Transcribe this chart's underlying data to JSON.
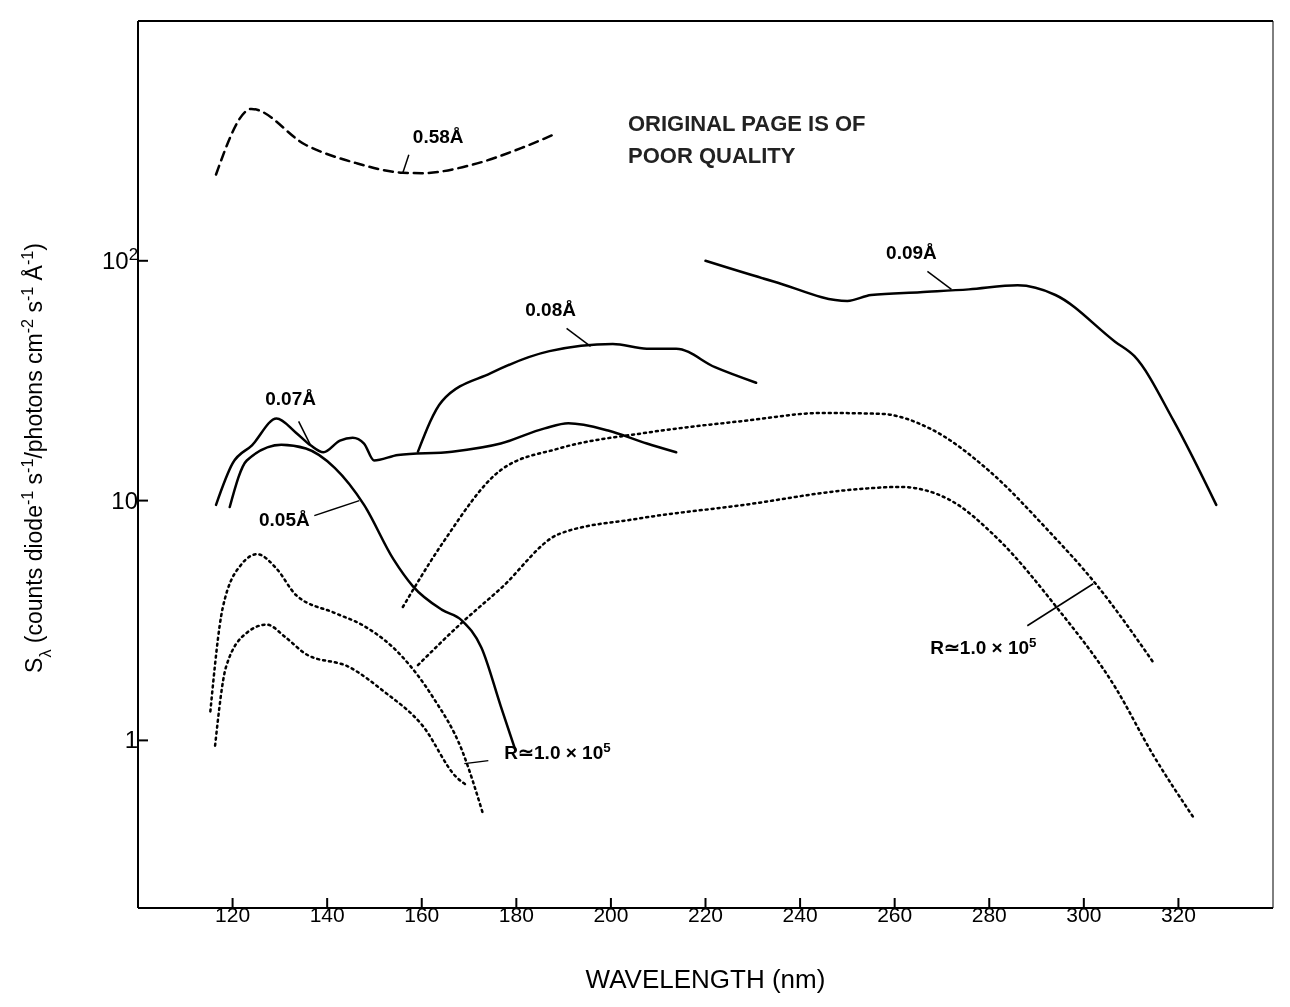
{
  "chart_data": {
    "type": "line",
    "xlabel": "WAVELENGTH (nm)",
    "ylabel": "S$_{λ}$ (counts diode$^{-1}$ s$^{-1}$/photons cm$^{-2}$ s$^{-1}$ Å$^{-1}$)",
    "xlim": [
      100,
      340
    ],
    "xticks": [
      120,
      140,
      160,
      180,
      200,
      220,
      240,
      260,
      280,
      300,
      320
    ],
    "ylim": [
      0.2,
      1000
    ],
    "yticks": [
      1,
      10,
      {
        "value": 100,
        "label": "10$^{2}$"
      }
    ],
    "log": "y",
    "marker": "none",
    "series": [
      {
        "color": "#000000",
        "line_style": "dashed",
        "x": [
          116.5,
          124,
          135.5,
          146,
          156,
          160,
          170.5,
          181,
          188.5
        ],
        "values": [
          229,
          430,
          304,
          256,
          233,
          232,
          251,
          295,
          340
        ]
      },
      {
        "color": "#000000",
        "line_style": "solid",
        "x": [
          220,
          234.4,
          250,
          255,
          265.4,
          275.7,
          286,
          294,
          306.6,
          310.7,
          319,
          328
        ],
        "values": [
          100,
          82,
          68,
          72,
          74,
          76,
          79,
          72,
          46,
          40,
          21.5,
          9.6
        ]
      },
      {
        "color": "#000000",
        "line_style": "solid",
        "x": [
          159.2,
          164.3,
          174.6,
          187,
          200.4,
          207.6,
          213.8,
          222,
          230.7
        ],
        "values": [
          16,
          26,
          34,
          42,
          45,
          43,
          43,
          36,
          31
        ]
      },
      {
        "color": "#000000",
        "line_style": "solid",
        "x": [
          116.5,
          120,
          124.1,
          129.3,
          133.4,
          136.5,
          139.2,
          142.7,
          145.4,
          147.8,
          149.9,
          155,
          166.4,
          176.7,
          186,
          191,
          199.4,
          207.6,
          213.8
        ],
        "values": [
          9.6,
          14.3,
          17,
          22,
          19.2,
          17,
          15.9,
          17.8,
          18.3,
          17.3,
          14.7,
          15.5,
          16,
          17.3,
          20,
          21,
          19.6,
          17.3,
          15.9
        ]
      },
      {
        "color": "#000000",
        "line_style": "solid",
        "x": [
          119.4,
          123,
          130.3,
          135.5,
          141.6,
          147.8,
          154,
          158.1,
          164.3,
          168.5,
          172.6,
          176.7,
          179.8
        ],
        "values": [
          9.4,
          14.7,
          17.1,
          16.5,
          13.7,
          9.6,
          5.7,
          4.4,
          3.5,
          3.16,
          2.44,
          1.39,
          0.91
        ]
      },
      {
        "color": "#000000",
        "line_style": "dotted",
        "x": [
          115.3,
          117.9,
          122,
          125.2,
          129.3,
          133.4,
          141.6,
          147.8,
          156,
          162.3,
          168.5,
          173
        ],
        "values": [
          1.32,
          3.56,
          5.46,
          5.98,
          5.2,
          4.04,
          3.4,
          3.0,
          2.22,
          1.52,
          0.91,
          0.49
        ]
      },
      {
        "color": "#000000",
        "line_style": "dotted",
        "x": [
          116.3,
          118.6,
          123.1,
          127.2,
          131.3,
          135.5,
          144.7,
          152,
          160.2,
          167.4,
          169.5
        ],
        "values": [
          0.95,
          2.02,
          2.82,
          3.04,
          2.68,
          2.29,
          2.02,
          1.6,
          1.15,
          0.7,
          0.65
        ]
      },
      {
        "color": "#000000",
        "line_style": "dotted",
        "x": [
          156,
          164.3,
          176.7,
          189,
          207.6,
          228.2,
          244.7,
          257.1,
          267.4,
          279.8,
          292.2,
          302.5,
          314.8
        ],
        "values": [
          3.6,
          6.6,
          13.4,
          16.5,
          19.2,
          21.5,
          23.2,
          23,
          20,
          13.4,
          7.6,
          4.5,
          2.1
        ]
      },
      {
        "color": "#000000",
        "line_style": "dotted",
        "x": [
          159.2,
          168.5,
          176.7,
          189,
          205.6,
          228.2,
          250.9,
          261.2,
          271.5,
          281.9,
          294.2,
          306.6,
          314.8,
          323.1
        ],
        "values": [
          2.06,
          3.1,
          4.3,
          7.25,
          8.4,
          9.6,
          11.1,
          11.4,
          10.1,
          6.9,
          3.6,
          1.67,
          0.86,
          0.48
        ]
      }
    ],
    "annotations": [
      {
        "text": "0.58Å",
        "x": 156,
        "y": 233
      },
      {
        "text": "0.09Å",
        "x": 272,
        "y": 76
      },
      {
        "text": "0.08Å",
        "x": 195.7,
        "y": 44
      },
      {
        "text": "0.07Å",
        "x": 136.5,
        "y": 17
      },
      {
        "text": "0.05Å",
        "x": 146.8,
        "y": 10
      },
      {
        "text": "R≃1.0 × 10$^{5}$",
        "x": 169,
        "y": 0.8
      },
      {
        "text": "R≃1.0 × 10$^{5}$",
        "x": 302,
        "y": 4.5
      },
      "ORIGINAL PAGE IS OF POOR QUALITY"
    ]
  }
}
